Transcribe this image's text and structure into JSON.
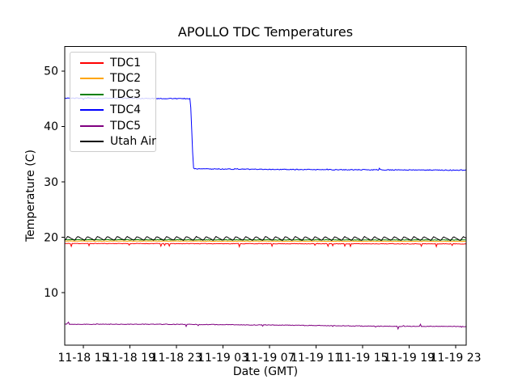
{
  "chart_data": {
    "type": "line",
    "title": "APOLLO TDC Temperatures",
    "xlabel": "Date (GMT)",
    "ylabel": "Temperature (C)",
    "grid": false,
    "legend_position": "upper left",
    "x_encoding": "hours since 11-18 00:00 GMT",
    "xlim": [
      13.4,
      47.9
    ],
    "ylim": [
      0.5,
      54.4
    ],
    "x_ticks": [
      {
        "value": 15,
        "label": "11-18 15"
      },
      {
        "value": 19,
        "label": "11-18 19"
      },
      {
        "value": 23,
        "label": "11-18 23"
      },
      {
        "value": 27,
        "label": "11-19 03"
      },
      {
        "value": 31,
        "label": "11-19 07"
      },
      {
        "value": 35,
        "label": "11-19 11"
      },
      {
        "value": 39,
        "label": "11-19 15"
      },
      {
        "value": 43,
        "label": "11-19 19"
      },
      {
        "value": 47,
        "label": "11-19 23"
      }
    ],
    "y_ticks": [
      10,
      20,
      30,
      40,
      50
    ],
    "series": [
      {
        "name": "TDC1",
        "color": "#ff0000",
        "baseline": [
          [
            13.4,
            18.87
          ],
          [
            47.9,
            18.8
          ]
        ],
        "noise": 0.05,
        "spikes": {
          "count": 16,
          "min": -0.55,
          "max": -0.2
        },
        "seed": 11
      },
      {
        "name": "TDC2",
        "color": "#ffa500",
        "baseline": [
          [
            13.4,
            19.32
          ],
          [
            47.9,
            19.25
          ]
        ],
        "noise": 0.04,
        "spikes": null,
        "seed": 22
      },
      {
        "name": "TDC3",
        "color": "#008000",
        "baseline": [
          [
            13.4,
            19.55
          ],
          [
            47.9,
            19.5
          ]
        ],
        "noise": 0.04,
        "spikes": null,
        "seed": 33
      },
      {
        "name": "TDC4",
        "color": "#0000ff",
        "baseline": [
          [
            13.4,
            45.1
          ],
          [
            24.2,
            45.0
          ],
          [
            24.45,
            32.35
          ],
          [
            34.0,
            32.2
          ],
          [
            47.9,
            32.1
          ]
        ],
        "noise": 0.07,
        "spikes": {
          "count": 12,
          "min": -0.25,
          "max": 0.3
        },
        "seed": 44
      },
      {
        "name": "TDC5",
        "color": "#800080",
        "baseline": [
          [
            13.4,
            4.3
          ],
          [
            22.0,
            4.3
          ],
          [
            32.0,
            4.15
          ],
          [
            40.0,
            3.95
          ],
          [
            47.9,
            3.9
          ]
        ],
        "noise": 0.05,
        "spikes": {
          "count": 18,
          "min": -0.5,
          "max": 0.45
        },
        "seed": 55
      },
      {
        "name": "Utah Air",
        "color": "#000000",
        "baseline": [
          [
            13.4,
            19.8
          ],
          [
            47.9,
            19.75
          ]
        ],
        "noise": 0.03,
        "sawtooth": {
          "period": 0.85,
          "amplitude": 0.35,
          "rise_fraction": 0.3
        },
        "spikes": null,
        "seed": 66
      }
    ]
  }
}
